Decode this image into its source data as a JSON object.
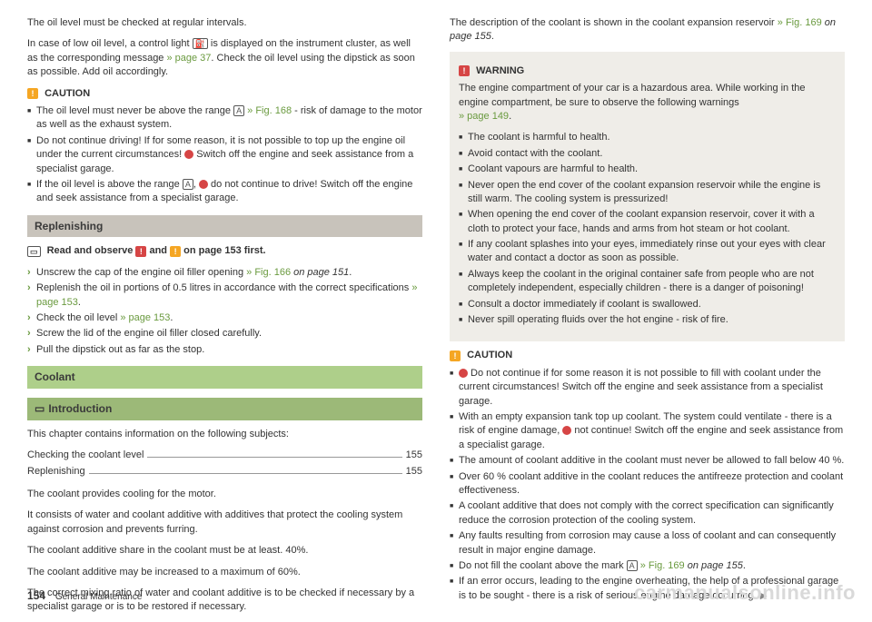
{
  "colors": {
    "green_link": "#6a9a3f",
    "orange_badge": "#f5a623",
    "red_badge": "#d64545",
    "grey_band": "#c8c3bb",
    "green_band": "#aecf8a",
    "warning_bg": "#efede8"
  },
  "left": {
    "p1": "The oil level must be checked at regular intervals.",
    "p2a": "In case of low oil level, a control light ",
    "p2_icon": "oil-can-icon",
    "p2b": " is displayed on the instrument cluster, as well as the corresponding message ",
    "p2_link": "» page 37",
    "p2c": ". Check the oil level using the dipstick as soon as possible. Add oil accordingly.",
    "caution_label": "CAUTION",
    "caution_items": [
      {
        "pre": "The oil level must never be above the range ",
        "boxed": "A",
        "link": " » Fig. 168",
        "post": " - risk of damage to the motor as well as the exhaust system."
      },
      {
        "pre": "Do not continue driving! If for some reason, it is not possible to top up the engine oil under the current circumstances! ",
        "red": true,
        "post": " Switch off the engine and seek assistance from a specialist garage."
      },
      {
        "pre": "If the oil level is above the range ",
        "boxed": "A",
        "mid": ", ",
        "red": true,
        "post": " do not continue to drive! Switch off the engine and seek assistance from a specialist garage."
      }
    ],
    "hdr_replenishing": "Replenishing",
    "readobs_a": "Read and observe ",
    "readobs_b": " and ",
    "readobs_c": " on page 153 first.",
    "repl_items": [
      {
        "t": "Unscrew the cap of the engine oil filler opening ",
        "link": "» Fig. 166",
        "it": " on page 151",
        "post": "."
      },
      {
        "t": "Replenish the oil in portions of 0.5 litres in accordance with the correct specifications ",
        "link": "» page 153",
        "post": "."
      },
      {
        "t": "Check the oil level ",
        "link": "» page 153",
        "post": "."
      },
      {
        "t": "Screw the lid of the engine oil filler closed carefully."
      },
      {
        "t": "Pull the dipstick out as far as the stop."
      }
    ],
    "hdr_coolant": "Coolant",
    "hdr_intro": "Introduction",
    "intro_p": "This chapter contains information on the following subjects:",
    "toc": [
      {
        "label": "Checking the coolant level",
        "page": "155"
      },
      {
        "label": "Replenishing",
        "page": "155"
      }
    ],
    "coolant_p1": "The coolant provides cooling for the motor.",
    "coolant_p2": "It consists of water and coolant additive with additives that protect the cooling system against corrosion and prevents furring.",
    "coolant_p3": "The coolant additive share in the coolant must be at least. 40%.",
    "coolant_p4": "The coolant additive may be increased to a maximum of 60%.",
    "coolant_p5": "The correct mixing ratio of water and coolant additive is to be checked if necessary by a specialist garage or is to be restored if necessary."
  },
  "right": {
    "p1a": "The description of the coolant is shown in the coolant expansion reservoir ",
    "p1_link": "» Fig. 169",
    "p1_it": " on page 155",
    "p1b": ".",
    "warning_label": "WARNING",
    "warn_intro_a": "The engine compartment of your car is a hazardous area. While working in the engine compartment, be sure to observe the following warnings ",
    "warn_intro_link": "» page 149",
    "warn_intro_b": ".",
    "warn_items": [
      "The coolant is harmful to health.",
      "Avoid contact with the coolant.",
      "Coolant vapours are harmful to health.",
      "Never open the end cover of the coolant expansion reservoir while the engine is still warm. The cooling system is pressurized!",
      "When opening the end cover of the coolant expansion reservoir, cover it with a cloth to protect your face, hands and arms from hot steam or hot coolant.",
      "If any coolant splashes into your eyes, immediately rinse out your eyes with clear water and contact a doctor as soon as possible.",
      "Always keep the coolant in the original container safe from people who are not completely independent, especially children - there is a danger of poisoning!",
      "Consult a doctor immediately if coolant is swallowed.",
      "Never spill operating fluids over the hot engine - risk of fire."
    ],
    "caution_label": "CAUTION",
    "caution_items": [
      {
        "red": true,
        "t": " Do not continue if for some reason it is not possible to fill with coolant under the current circumstances! Switch off the engine and seek assistance from a specialist garage."
      },
      {
        "t": "With an empty expansion tank top up coolant. The system could ventilate - there is a risk of engine damage, ",
        "red2": true,
        "t2": " not continue! Switch off the engine and seek assistance from a specialist garage."
      },
      {
        "t": "The amount of coolant additive in the coolant must never be allowed to fall below 40 %."
      },
      {
        "t": "Over 60 % coolant additive in the coolant reduces the antifreeze protection and coolant effectiveness."
      },
      {
        "t": "A coolant additive that does not comply with the correct specification can significantly reduce the corrosion protection of the cooling system."
      },
      {
        "t": "Any faults resulting from corrosion may cause a loss of coolant and can consequently result in major engine damage."
      },
      {
        "t": "Do not fill the coolant above the mark ",
        "boxed": "A",
        "link": " » Fig. 169",
        "it": " on page 155",
        "post": "."
      },
      {
        "t": "If an error occurs, leading to the engine overheating, the help of a professional garage is to be sought - there is a risk of serious engine damage occurring.",
        "cont": true
      }
    ]
  },
  "footer": {
    "page": "154",
    "section": "General Maintenance"
  },
  "watermark": "carmanualsonline.info"
}
